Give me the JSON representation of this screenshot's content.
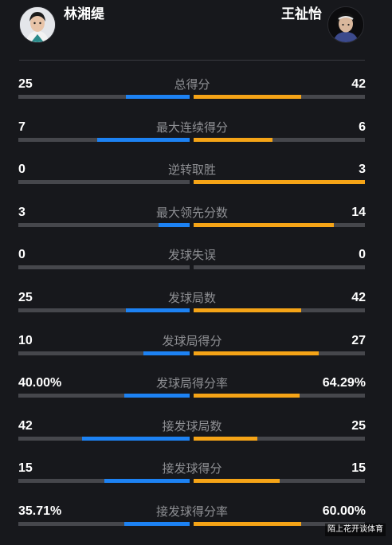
{
  "players": {
    "left": {
      "name": "林湘缇"
    },
    "right": {
      "name": "王祉怡"
    }
  },
  "colors": {
    "left_bar": "#1d82f3",
    "right_bar": "#f5a417",
    "track": "#46474c"
  },
  "stats": [
    {
      "label": "总得分",
      "left": "25",
      "right": "42",
      "left_share": 0.37,
      "right_share": 0.63
    },
    {
      "label": "最大连续得分",
      "left": "7",
      "right": "6",
      "left_share": 0.54,
      "right_share": 0.46
    },
    {
      "label": "逆转取胜",
      "left": "0",
      "right": "3",
      "left_share": 0.0,
      "right_share": 1.0
    },
    {
      "label": "最大领先分数",
      "left": "3",
      "right": "14",
      "left_share": 0.18,
      "right_share": 0.82
    },
    {
      "label": "发球失误",
      "left": "0",
      "right": "0",
      "left_share": 0.0,
      "right_share": 0.0
    },
    {
      "label": "发球局数",
      "left": "25",
      "right": "42",
      "left_share": 0.37,
      "right_share": 0.63
    },
    {
      "label": "发球局得分",
      "left": "10",
      "right": "27",
      "left_share": 0.27,
      "right_share": 0.73
    },
    {
      "label": "发球局得分率",
      "left": "40.00%",
      "right": "64.29%",
      "left_share": 0.38,
      "right_share": 0.62
    },
    {
      "label": "接发球局数",
      "left": "42",
      "right": "25",
      "left_share": 0.63,
      "right_share": 0.37
    },
    {
      "label": "接发球得分",
      "left": "15",
      "right": "15",
      "left_share": 0.5,
      "right_share": 0.5
    },
    {
      "label": "接发球得分率",
      "left": "35.71%",
      "right": "60.00%",
      "left_share": 0.38,
      "right_share": 0.63
    }
  ],
  "watermark": "陌上花开谈体育"
}
